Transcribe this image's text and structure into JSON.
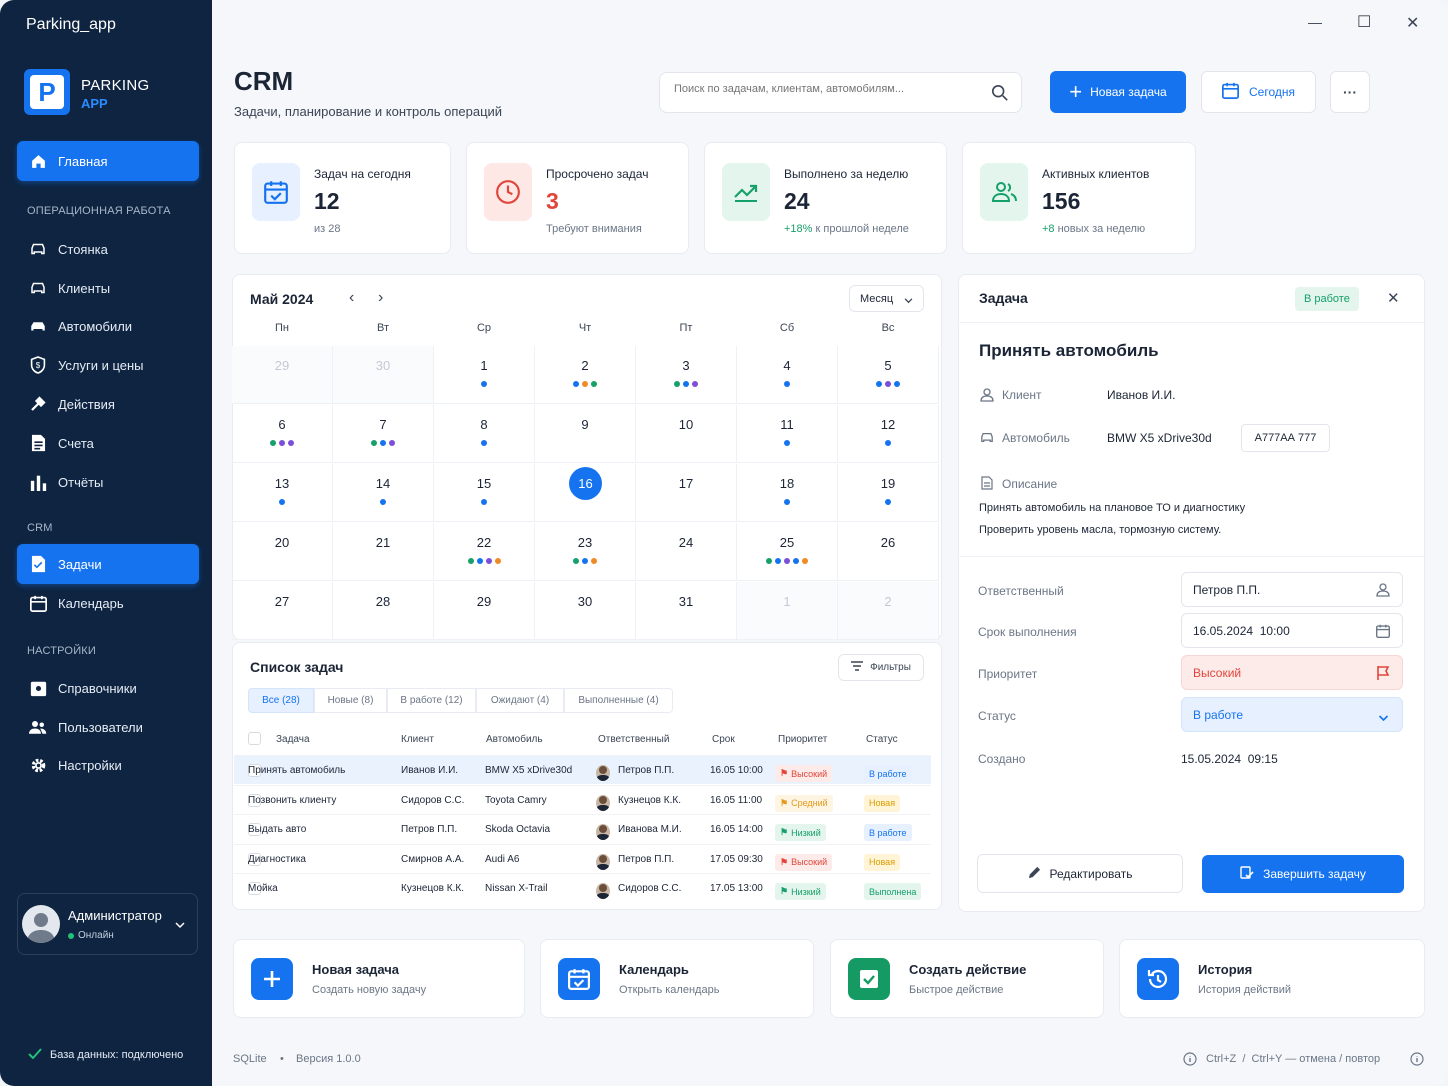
{
  "app": {
    "title": "Parking_app",
    "logo_letter": "P",
    "logo_line1": "PARKING",
    "logo_line2": "APP"
  },
  "window_controls": {
    "minimize": "—",
    "maximize": "☐",
    "close": "✕"
  },
  "sidebar": {
    "home": "Главная",
    "section_ops": "ОПЕРАЦИОННАЯ РАБОТА",
    "ops_items": [
      "Стоянка",
      "Клиенты",
      "Автомобили",
      "Услуги и цены",
      "Действия",
      "Счета",
      "Отчёты"
    ],
    "section_crm": "CRM",
    "crm_items": [
      "Задачи",
      "Календарь"
    ],
    "section_settings": "НАСТРОЙКИ",
    "settings_items": [
      "Справочники",
      "Пользователи",
      "Настройки"
    ],
    "user_name": "Администратор",
    "user_status": "Онлайн",
    "db_status": "База данных: подключено"
  },
  "header": {
    "title": "CRM",
    "subtitle": "Задачи, планирование и контроль операций",
    "search_placeholder": "Поиск по задачам, клиентам, автомобилям...",
    "new_task": "Новая задача",
    "today": "Сегодня",
    "more": "···"
  },
  "kpis": [
    {
      "title": "Задач на сегодня",
      "value": "12",
      "sub": "из 28",
      "accent": "#1673f0"
    },
    {
      "title": "Просрочено задач",
      "value": "3",
      "sub": "Требуют внимания",
      "accent": "#e0463a"
    },
    {
      "title": "Выполнено за неделю",
      "value": "24",
      "sub_accent": "+18%",
      "sub": " к прошлой неделе",
      "accent": "#16a06a"
    },
    {
      "title": "Активных клиентов",
      "value": "156",
      "sub_accent": "+8",
      "sub": " новых за неделю",
      "accent": "#16a06a"
    }
  ],
  "calendar": {
    "month": "Май 2024",
    "view": "Месяц",
    "prev": "‹",
    "next": "›",
    "weekdays": [
      "Пн",
      "Вт",
      "Ср",
      "Чт",
      "Пт",
      "Сб",
      "Вс"
    ],
    "days": [
      {
        "n": "29",
        "dim": true,
        "dots": []
      },
      {
        "n": "30",
        "dim": true,
        "dots": []
      },
      {
        "n": "1",
        "dots": [
          "#1673f0"
        ]
      },
      {
        "n": "2",
        "dots": [
          "#1673f0",
          "#f08a24",
          "#16a06a"
        ]
      },
      {
        "n": "3",
        "dots": [
          "#16a06a",
          "#1673f0",
          "#7b4fd8"
        ]
      },
      {
        "n": "4",
        "dots": [
          "#1673f0"
        ]
      },
      {
        "n": "5",
        "dots": [
          "#1673f0",
          "#7b4fd8",
          "#1673f0"
        ]
      },
      {
        "n": "6",
        "dots": [
          "#16a06a",
          "#7b4fd8",
          "#7b4fd8"
        ]
      },
      {
        "n": "7",
        "dots": [
          "#16a06a",
          "#1673f0",
          "#7b4fd8"
        ]
      },
      {
        "n": "8",
        "dots": [
          "#1673f0"
        ]
      },
      {
        "n": "9",
        "dots": []
      },
      {
        "n": "10",
        "dots": []
      },
      {
        "n": "11",
        "dots": [
          "#1673f0"
        ]
      },
      {
        "n": "12",
        "dots": [
          "#1673f0"
        ]
      },
      {
        "n": "13",
        "dots": [
          "#1673f0"
        ]
      },
      {
        "n": "14",
        "dots": [
          "#1673f0"
        ]
      },
      {
        "n": "15",
        "dots": [
          "#1673f0"
        ]
      },
      {
        "n": "16",
        "today": true,
        "dots": []
      },
      {
        "n": "17",
        "dots": []
      },
      {
        "n": "18",
        "dots": [
          "#1673f0"
        ]
      },
      {
        "n": "19",
        "dots": [
          "#1673f0"
        ]
      },
      {
        "n": "20",
        "dots": []
      },
      {
        "n": "21",
        "dots": []
      },
      {
        "n": "22",
        "dots": [
          "#16a06a",
          "#1673f0",
          "#7b4fd8",
          "#f08a24"
        ]
      },
      {
        "n": "23",
        "dots": [
          "#16a06a",
          "#1673f0",
          "#f08a24"
        ]
      },
      {
        "n": "24",
        "dots": []
      },
      {
        "n": "25",
        "dots": [
          "#16a06a",
          "#1673f0",
          "#7b4fd8",
          "#1673f0",
          "#f08a24"
        ]
      },
      {
        "n": "26",
        "dots": []
      },
      {
        "n": "27",
        "dots": []
      },
      {
        "n": "28",
        "dots": []
      },
      {
        "n": "29",
        "dots": []
      },
      {
        "n": "30",
        "dots": []
      },
      {
        "n": "31",
        "dots": []
      },
      {
        "n": "1",
        "dim": true,
        "dots": []
      },
      {
        "n": "2",
        "dim": true,
        "dots": []
      }
    ]
  },
  "tasks": {
    "title": "Список задач",
    "filters": "Фильтры",
    "tabs": [
      "Все (28)",
      "Новые (8)",
      "В работе (12)",
      "Ожидают (4)",
      "Выполненные (4)"
    ],
    "columns": [
      "Задача",
      "Клиент",
      "Автомобиль",
      "Ответственный",
      "Срок",
      "Приоритет",
      "Статус"
    ],
    "rows": [
      {
        "task": "Принять автомобиль",
        "client": "Иванов И.И.",
        "car": "BMW X5 xDrive30d",
        "owner": "Петров П.П.",
        "due": "16.05 10:00",
        "priority": "Высокий",
        "prio_kind": "high",
        "status": "В работе",
        "status_kind": "work",
        "selected": true
      },
      {
        "task": "Позвонить клиенту",
        "client": "Сидоров С.С.",
        "car": "Toyota Camry",
        "owner": "Кузнецов К.К.",
        "due": "16.05 11:00",
        "priority": "Средний",
        "prio_kind": "mid",
        "status": "Новая",
        "status_kind": "new"
      },
      {
        "task": "Выдать авто",
        "client": "Петров П.П.",
        "car": "Skoda Octavia",
        "owner": "Иванова М.И.",
        "due": "16.05 14:00",
        "priority": "Низкий",
        "prio_kind": "low",
        "status": "В работе",
        "status_kind": "work"
      },
      {
        "task": "Диагностика",
        "client": "Смирнов А.А.",
        "car": "Audi A6",
        "owner": "Петров П.П.",
        "due": "17.05 09:30",
        "priority": "Высокий",
        "prio_kind": "high",
        "status": "Новая",
        "status_kind": "new"
      },
      {
        "task": "Мойка",
        "client": "Кузнецов К.К.",
        "car": "Nissan X-Trail",
        "owner": "Сидоров С.С.",
        "due": "17.05 13:00",
        "priority": "Низкий",
        "prio_kind": "low",
        "status": "Выполнена",
        "status_kind": "done"
      }
    ]
  },
  "detail": {
    "header": "Задача",
    "badge": "В работе",
    "close": "✕",
    "task_title": "Принять автомобиль",
    "client_label": "Клиент",
    "client": "Иванов И.И.",
    "car_label": "Автомобиль",
    "car": "BMW X5 xDrive30d",
    "plate": "А777АА 777",
    "desc_label": "Описание",
    "desc1": "Принять автомобиль на плановое ТО и диагностику",
    "desc2": "Проверить уровень масла, тормозную систему.",
    "resp_label": "Ответственный",
    "resp": "Петров П.П.",
    "due_label": "Срок выполнения",
    "due": "16.05.2024  10:00",
    "prio_label": "Приоритет",
    "prio": "Высокий",
    "status_label": "Статус",
    "status": "В работе",
    "created_label": "Создано",
    "created": "15.05.2024  09:15",
    "edit": "Редактировать",
    "complete": "Завершить задачу"
  },
  "quick": [
    {
      "title": "Новая задача",
      "sub": "Создать новую задачу",
      "color": "#1673f0"
    },
    {
      "title": "Календарь",
      "sub": "Открыть календарь",
      "color": "#1673f0"
    },
    {
      "title": "Создать действие",
      "sub": "Быстрое действие",
      "color": "#159a63"
    },
    {
      "title": "История",
      "sub": "История действий",
      "color": "#1673f0"
    }
  ],
  "footer": {
    "db": "SQLite",
    "sep": "•",
    "version": "Версия 1.0.0",
    "shortcuts": "Ctrl+Z  /  Ctrl+Y — отмена / повтор"
  }
}
